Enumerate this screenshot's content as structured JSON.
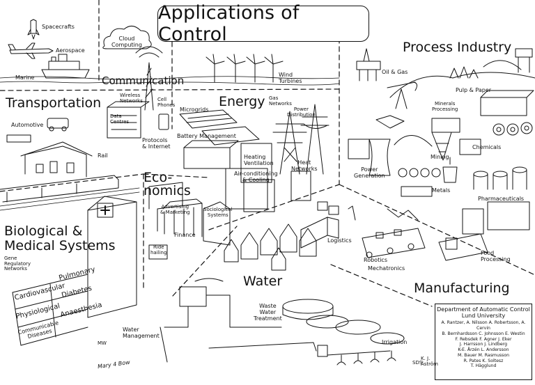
{
  "title": "Applications of Control",
  "domains": {
    "process_industry": "Process Industry",
    "transportation": "Transportation",
    "communication": "Communication",
    "energy": "Energy",
    "economics": "Eco-\nnomics",
    "bio_medical": "Biological &\nMedical Systems",
    "water": "Water",
    "manufacturing": "Manufacturing"
  },
  "sub_labels": {
    "spacecrafts": "Spacecrafts",
    "aerospace": "Aerospace",
    "marine": "Marine",
    "cloud_computing": "Cloud\nComputing",
    "automotive": "Automotive",
    "rail": "Rail",
    "wireless_networks": "Wireless\nNetworks",
    "cell_phones": "Cell\nPhones",
    "data_centres": "Data\nCentres",
    "protocols_internet": "Protocols\n& Internet",
    "wind_turbines": "Wind\nTurbines",
    "microgrids": "Microgrids",
    "gas_networks": "Gas\nNetworks",
    "power_distribution": "Power\nDistribution",
    "battery_management": "Battery Management",
    "heating_ventilation": "Heating\nVentilation",
    "air_conditioning": "Air-conditioning\n& Cooling",
    "heat_networks": "Heat\nNetworks",
    "oil_gas": "Oil & Gas",
    "pulp_paper": "Pulp & Paper",
    "minerals_processing": "Minerals\nProcessing",
    "mining": "Mining",
    "chemicals": "Chemicals",
    "power_generation": "Power\nGeneration",
    "metals": "Metals",
    "pharmaceuticals": "Pharmaceuticals",
    "advertising_marketing": "Advertising\n& Marketing",
    "sociological_systems": "Sociological\nSystems",
    "finance": "Finance",
    "ride_hailing": "Ride\nhailing",
    "logistics": "Logistics",
    "robotics": "Robotics",
    "mechatronics": "Mechatronics",
    "food_processing": "Food\nProcessing",
    "gene_regulatory_networks": "Gene\nRegulatory\nNetworks",
    "waste_water_treatment": "Waste\nWater\nTreatment",
    "water_management": "Water\nManagement",
    "irrigation": "Irrigation"
  },
  "medical_terms": [
    "Cardiovascular",
    "Pulmonary",
    "Physiological",
    "Diabetes",
    "Communicable\nDiseases",
    "Anaesthesia"
  ],
  "credits": {
    "heading": "Department of Automatic Control\nLund University",
    "lines": [
      "A. Rantzer, A. Nilsson  A. Robertsson, A. Cervin",
      "B. Bernhardsson  C. Johnsson  E. Westin",
      "F. Rebsdek  F. Agner  J. Eker",
      "J. Harrsson  J. Lindberg",
      "K-E. Årzén  L. Andersson",
      "M. Bauer  M. Rasmusson",
      "R. Pates  K. Soltesz",
      "T. Hägglund"
    ]
  },
  "signatures": {
    "astrom": "K. J.\nÅström",
    "artist": "Mary 4 Bow",
    "artist_initials": "MW",
    "sds": "SDS"
  }
}
